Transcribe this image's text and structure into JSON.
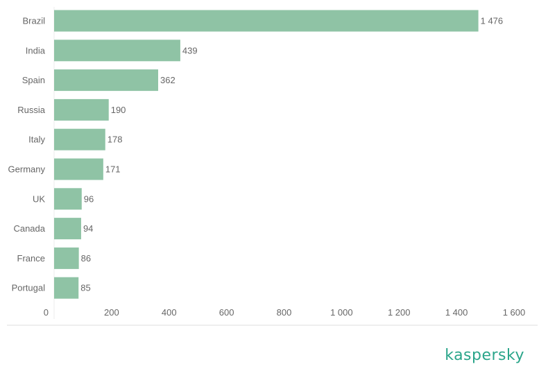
{
  "chart_data": {
    "type": "bar",
    "orientation": "horizontal",
    "categories": [
      "Brazil",
      "India",
      "Spain",
      "Russia",
      "Italy",
      "Germany",
      "UK",
      "Canada",
      "France",
      "Portugal"
    ],
    "values": [
      1476,
      439,
      362,
      190,
      178,
      171,
      96,
      94,
      86,
      85
    ],
    "value_labels": [
      "1 476",
      "439",
      "362",
      "190",
      "178",
      "171",
      "96",
      "94",
      "86",
      "85"
    ],
    "x_ticks": [
      0,
      200,
      400,
      600,
      800,
      1000,
      1200,
      1400,
      1600
    ],
    "x_tick_labels": [
      "0",
      "200",
      "400",
      "600",
      "800",
      "1 000",
      "1 200",
      "1 400",
      "1 600"
    ],
    "xlim": [
      0,
      1600
    ],
    "bar_color": "#8fc3a5",
    "grid": false,
    "title": "",
    "xlabel": "",
    "ylabel": ""
  },
  "brand": {
    "logo_text": "kaspersky",
    "color": "#2aa58a"
  }
}
